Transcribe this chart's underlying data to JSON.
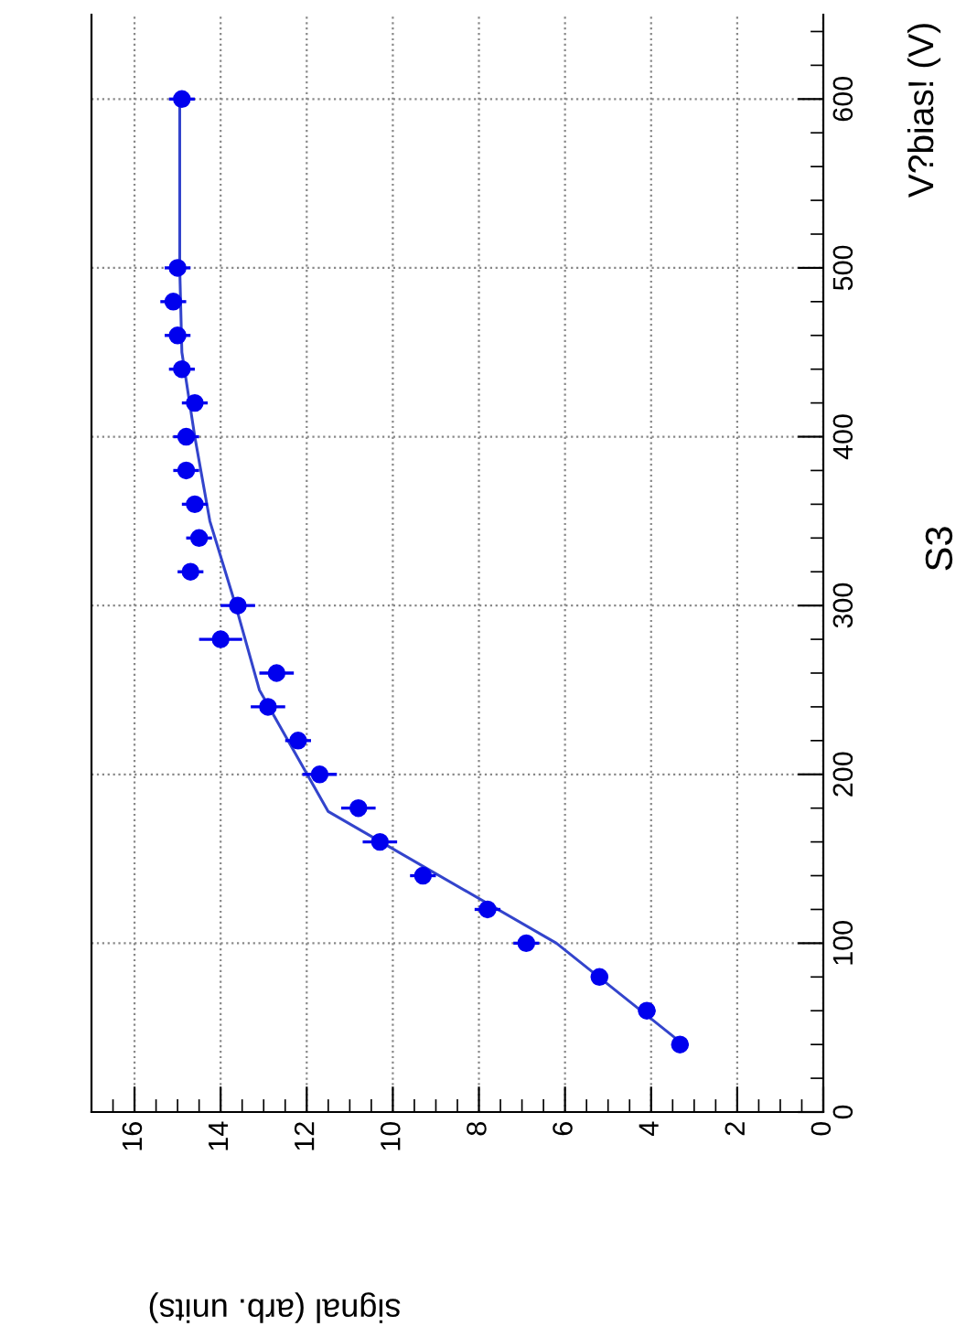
{
  "chart_data": {
    "type": "scatter",
    "title": "S3",
    "xlabel": "signal (arb. units)",
    "ylabel": "V?bias! (V)",
    "xlim": [
      17,
      0
    ],
    "xticks": [
      0,
      2,
      4,
      6,
      8,
      10,
      12,
      14,
      16
    ],
    "ylim": [
      0,
      650
    ],
    "yticks": [
      0,
      100,
      200,
      300,
      400,
      500,
      600
    ],
    "grid": true,
    "marker": "circle",
    "series": [
      {
        "color": "#0000ee",
        "x": [
          3.33,
          4.1,
          5.2,
          6.9,
          7.8,
          9.3,
          10.3,
          10.8,
          11.7,
          12.2,
          12.9,
          12.7,
          14.0,
          13.6,
          14.7,
          14.5,
          14.6,
          14.8,
          14.8,
          14.6,
          14.9,
          15.0,
          15.1,
          15.0,
          14.9
        ],
        "values": [
          40,
          60,
          80,
          100,
          120,
          140,
          160,
          180,
          200,
          220,
          240,
          260,
          280,
          300,
          320,
          340,
          360,
          380,
          400,
          420,
          440,
          460,
          480,
          500,
          600
        ],
        "xerrors": [
          0.2,
          0.2,
          0.2,
          0.3,
          0.3,
          0.3,
          0.4,
          0.4,
          0.4,
          0.3,
          0.4,
          0.4,
          0.5,
          0.4,
          0.3,
          0.3,
          0.3,
          0.3,
          0.3,
          0.3,
          0.3,
          0.3,
          0.3,
          0.3,
          0.3
        ]
      },
      {
        "type": "line",
        "color": "#3344cc",
        "marker": "none",
        "x": [
          3.25,
          6.2,
          11.5,
          13.1,
          13.65,
          14.25,
          14.6,
          14.9,
          14.95,
          14.95
        ],
        "values": [
          40,
          100,
          178,
          250,
          300,
          350,
          400,
          450,
          500,
          600
        ]
      }
    ]
  }
}
